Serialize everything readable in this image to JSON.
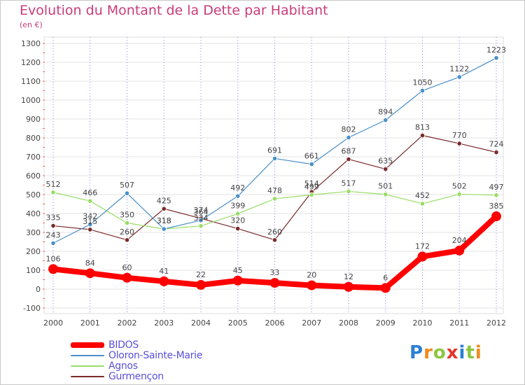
{
  "chart_data": {
    "type": "line",
    "title": "Evolution du Montant de la Dette par Habitant",
    "subtitle": "(en €)",
    "x": [
      "2000",
      "2001",
      "2002",
      "2003",
      "2004",
      "2005",
      "2006",
      "2007",
      "2008",
      "2009",
      "2010",
      "2011",
      "2012"
    ],
    "ylim": [
      -100,
      1300
    ],
    "yticks": [
      -100,
      0,
      100,
      200,
      300,
      400,
      500,
      600,
      700,
      800,
      900,
      1000,
      1100,
      1200,
      1300
    ],
    "grid": true,
    "legend_position": "bottom-left",
    "series": [
      {
        "name": "BIDOS",
        "color": "#ff0000",
        "values": [
          106,
          84,
          60,
          41,
          22,
          45,
          33,
          20,
          12,
          6,
          172,
          204,
          385
        ]
      },
      {
        "name": "Oloron-Sainte-Marie",
        "color": "#4a90c8",
        "values": [
          243,
          342,
          507,
          318,
          364,
          492,
          691,
          661,
          802,
          894,
          1050,
          1122,
          1223
        ]
      },
      {
        "name": "Agnos",
        "color": "#99dd66",
        "values": [
          512,
          466,
          350,
          318,
          334,
          399,
          478,
          499,
          517,
          501,
          452,
          502,
          497
        ]
      },
      {
        "name": "Gurmençon",
        "color": "#7a2a2a",
        "values": [
          335,
          315,
          260,
          425,
          374,
          320,
          260,
          514,
          687,
          635,
          813,
          770,
          724
        ]
      }
    ]
  },
  "brand": {
    "letters": [
      "P",
      "r",
      "o",
      "x",
      "i",
      "t",
      "i"
    ],
    "colors": [
      "#2a7fd4",
      "#f08a1c",
      "#8cc63f",
      "#e6332a",
      "#2a7fd4",
      "#8cc63f",
      "#f08a1c"
    ]
  }
}
